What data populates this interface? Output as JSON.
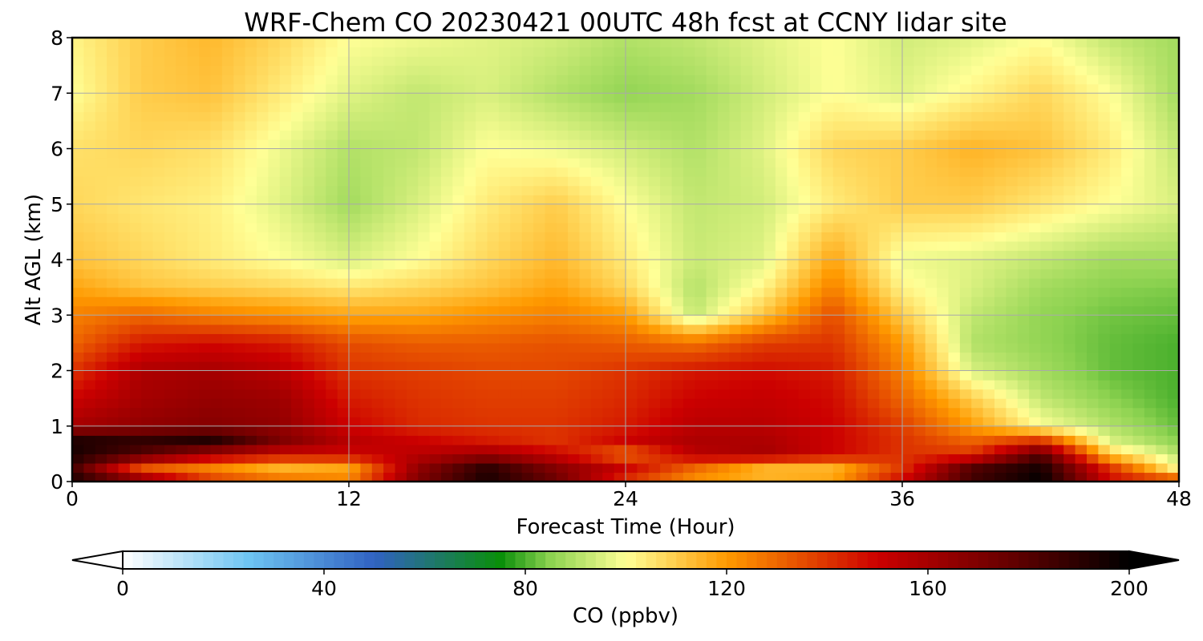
{
  "chart_data": {
    "type": "heatmap",
    "title": "WRF-Chem CO  20230421 00UTC 48h fcst at CCNY lidar site",
    "xlabel": "Forecast Time (Hour)",
    "ylabel": "Alt AGL (km)",
    "xlim": [
      0,
      48
    ],
    "ylim": [
      0,
      8
    ],
    "x_ticks": [
      0,
      12,
      24,
      36,
      48
    ],
    "y_ticks": [
      0,
      1,
      2,
      3,
      4,
      5,
      6,
      7,
      8
    ],
    "grid": true,
    "x": [
      0,
      3,
      6,
      9,
      12,
      15,
      18,
      21,
      24,
      27,
      30,
      33,
      36,
      39,
      42,
      45,
      48
    ],
    "y": [
      0,
      0.25,
      0.5,
      0.75,
      1,
      1.5,
      2,
      2.5,
      3,
      3.5,
      4,
      5,
      6,
      7,
      8
    ],
    "z": [
      [
        195,
        170,
        140,
        130,
        125,
        170,
        195,
        175,
        140,
        120,
        115,
        118,
        150,
        185,
        200,
        150,
        140
      ],
      [
        185,
        135,
        125,
        115,
        118,
        165,
        190,
        168,
        150,
        130,
        115,
        115,
        140,
        180,
        195,
        140,
        100
      ],
      [
        195,
        180,
        160,
        150,
        150,
        155,
        162,
        150,
        128,
        155,
        160,
        150,
        140,
        140,
        180,
        110,
        90
      ],
      [
        192,
        188,
        192,
        170,
        155,
        150,
        145,
        140,
        150,
        158,
        158,
        150,
        140,
        130,
        140,
        95,
        85
      ],
      [
        160,
        165,
        168,
        165,
        150,
        142,
        140,
        140,
        145,
        155,
        155,
        150,
        138,
        120,
        100,
        90,
        82
      ],
      [
        150,
        160,
        164,
        162,
        145,
        140,
        138,
        138,
        142,
        150,
        152,
        148,
        130,
        110,
        92,
        85,
        80
      ],
      [
        140,
        158,
        160,
        155,
        140,
        138,
        136,
        136,
        140,
        146,
        148,
        145,
        125,
        95,
        88,
        82,
        80
      ],
      [
        130,
        145,
        148,
        145,
        135,
        132,
        132,
        134,
        132,
        128,
        138,
        140,
        120,
        90,
        86,
        82,
        80
      ],
      [
        125,
        130,
        125,
        122,
        118,
        118,
        122,
        125,
        120,
        92,
        112,
        135,
        110,
        92,
        86,
        83,
        82
      ],
      [
        118,
        112,
        110,
        108,
        105,
        108,
        112,
        118,
        108,
        90,
        102,
        125,
        102,
        95,
        88,
        85,
        84
      ],
      [
        112,
        108,
        104,
        100,
        95,
        100,
        108,
        114,
        104,
        93,
        96,
        118,
        98,
        96,
        92,
        88,
        88
      ],
      [
        108,
        105,
        103,
        96,
        88,
        95,
        104,
        110,
        100,
        92,
        94,
        104,
        110,
        110,
        105,
        100,
        95
      ],
      [
        106,
        108,
        106,
        98,
        90,
        92,
        100,
        98,
        94,
        90,
        96,
        108,
        110,
        115,
        112,
        104,
        92
      ],
      [
        100,
        110,
        112,
        104,
        96,
        92,
        95,
        90,
        86,
        88,
        94,
        100,
        96,
        102,
        108,
        100,
        88
      ],
      [
        102,
        110,
        114,
        108,
        100,
        98,
        96,
        94,
        90,
        92,
        96,
        100,
        94,
        96,
        100,
        92,
        88
      ]
    ],
    "colorbar": {
      "label": "CO  (ppbv)",
      "range": [
        0,
        200
      ],
      "ticks": [
        0,
        40,
        80,
        120,
        160,
        200
      ],
      "extend": "both",
      "orientation": "horizontal",
      "colors": {
        "0": "#ffffff",
        "25": "#6ec4f2",
        "50": "#3162c2",
        "75": "#0a8f0a",
        "85": "#8cd250",
        "100": "#ffff96",
        "120": "#ff9a00",
        "150": "#cc0000",
        "175": "#6a0000",
        "200": "#000000"
      }
    }
  }
}
